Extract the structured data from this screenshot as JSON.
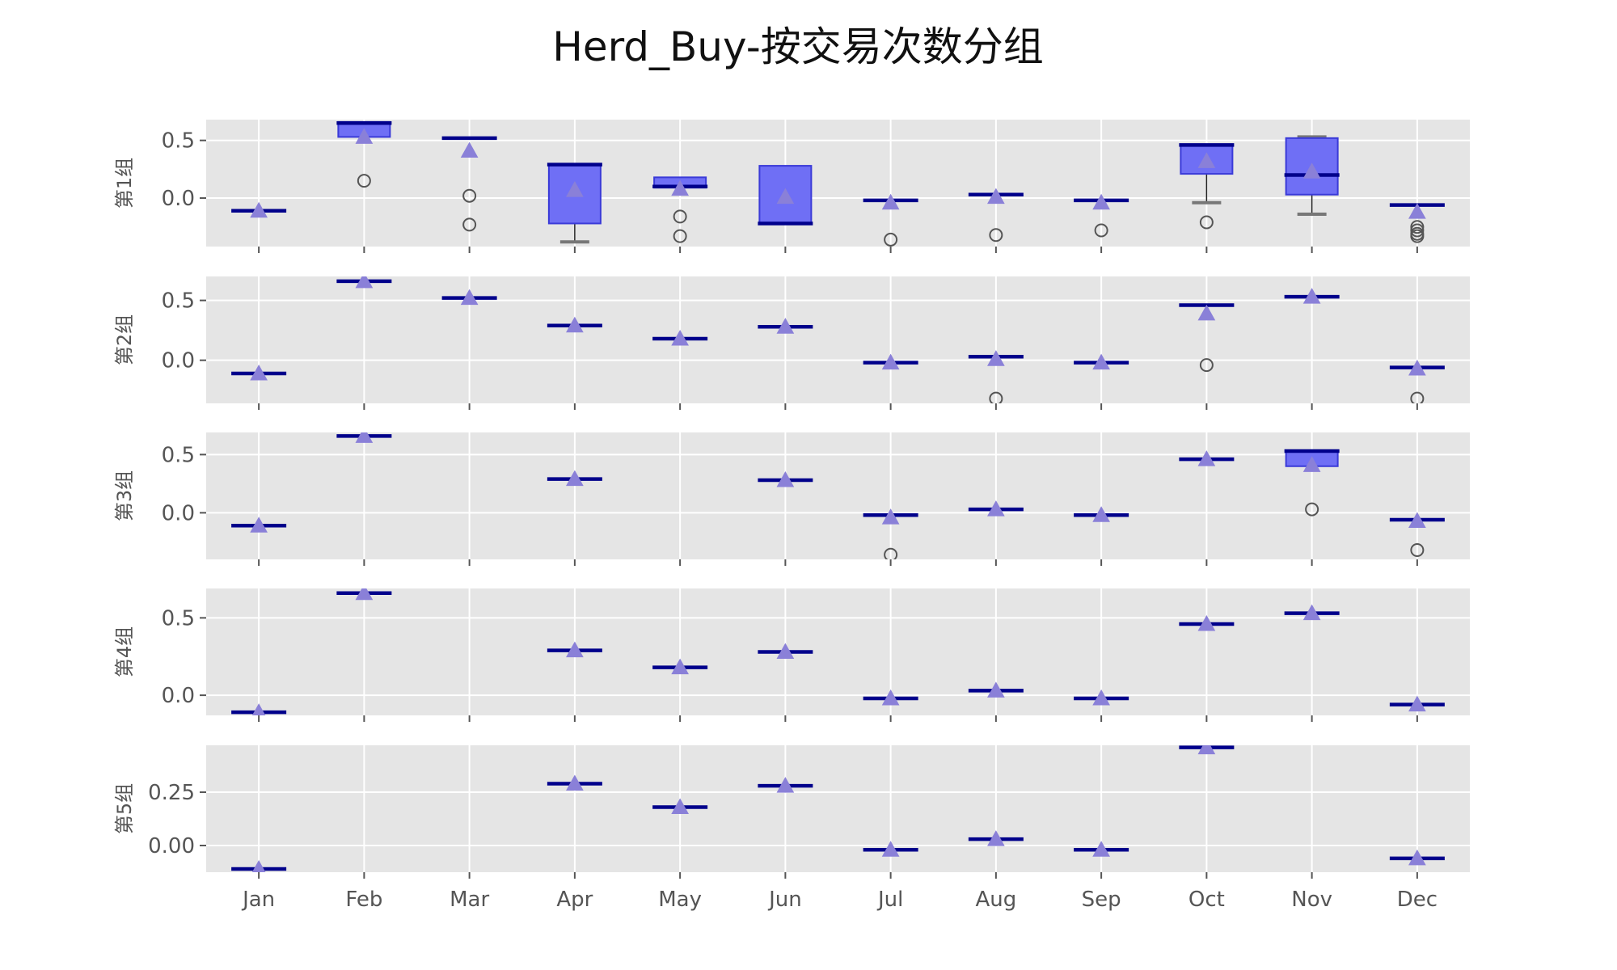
{
  "chart_data": {
    "type": "box",
    "title": "Herd_Buy-按交易次数分组",
    "categories": [
      "Jan",
      "Feb",
      "Mar",
      "Apr",
      "May",
      "Jun",
      "Jul",
      "Aug",
      "Sep",
      "Oct",
      "Nov",
      "Dec"
    ],
    "legend": "none",
    "grid": true,
    "colors": {
      "box_fill": "#6f6ff5",
      "box_edge": "#3a3ad8",
      "median": "#00008b",
      "mean_marker": "#8a80d8",
      "outlier": "#555555",
      "plot_bg": "#e5e5e5",
      "grid": "#ffffff"
    },
    "panels": [
      {
        "ylabel": "第1组",
        "ylim": [
          -0.42,
          0.68
        ],
        "yticks": [
          0.5,
          0.0
        ],
        "ytick_labels": [
          "0.5",
          "0.0"
        ],
        "boxes": [
          {
            "cat": "Jan",
            "q1": -0.11,
            "med": -0.11,
            "q3": -0.11,
            "wlo": -0.11,
            "whi": -0.11,
            "mean": -0.11,
            "outliers": []
          },
          {
            "cat": "Feb",
            "q1": 0.53,
            "med": 0.65,
            "q3": 0.66,
            "wlo": 0.53,
            "whi": 0.66,
            "mean": 0.53,
            "outliers": [
              0.15
            ]
          },
          {
            "cat": "Mar",
            "q1": 0.52,
            "med": 0.52,
            "q3": 0.52,
            "wlo": 0.52,
            "whi": 0.52,
            "mean": 0.41,
            "outliers": [
              0.02,
              -0.23
            ]
          },
          {
            "cat": "Apr",
            "q1": -0.22,
            "med": 0.29,
            "q3": 0.29,
            "wlo": -0.38,
            "whi": 0.29,
            "mean": 0.07,
            "outliers": []
          },
          {
            "cat": "May",
            "q1": 0.09,
            "med": 0.1,
            "q3": 0.18,
            "wlo": 0.09,
            "whi": 0.18,
            "mean": 0.08,
            "outliers": [
              -0.16,
              -0.33
            ]
          },
          {
            "cat": "Jun",
            "q1": -0.22,
            "med": -0.22,
            "q3": 0.28,
            "wlo": -0.22,
            "whi": 0.28,
            "mean": 0.01,
            "outliers": []
          },
          {
            "cat": "Jul",
            "q1": -0.02,
            "med": -0.02,
            "q3": -0.02,
            "wlo": -0.02,
            "whi": -0.02,
            "mean": -0.04,
            "outliers": [
              -0.36
            ]
          },
          {
            "cat": "Aug",
            "q1": 0.03,
            "med": 0.03,
            "q3": 0.03,
            "wlo": 0.03,
            "whi": 0.03,
            "mean": 0.01,
            "outliers": [
              -0.32
            ]
          },
          {
            "cat": "Sep",
            "q1": -0.02,
            "med": -0.02,
            "q3": -0.02,
            "wlo": -0.02,
            "whi": -0.02,
            "mean": -0.04,
            "outliers": [
              -0.28
            ]
          },
          {
            "cat": "Oct",
            "q1": 0.21,
            "med": 0.46,
            "q3": 0.46,
            "wlo": -0.04,
            "whi": 0.46,
            "mean": 0.32,
            "outliers": [
              -0.21
            ]
          },
          {
            "cat": "Nov",
            "q1": 0.03,
            "med": 0.2,
            "q3": 0.52,
            "wlo": -0.14,
            "whi": 0.53,
            "mean": 0.23,
            "outliers": []
          },
          {
            "cat": "Dec",
            "q1": -0.06,
            "med": -0.06,
            "q3": -0.06,
            "wlo": -0.06,
            "whi": -0.06,
            "mean": -0.12,
            "outliers": [
              -0.25,
              -0.28,
              -0.31,
              -0.33
            ]
          }
        ]
      },
      {
        "ylabel": "第2组",
        "ylim": [
          -0.36,
          0.7
        ],
        "yticks": [
          0.5,
          0.0
        ],
        "ytick_labels": [
          "0.5",
          "0.0"
        ],
        "boxes": [
          {
            "cat": "Jan",
            "q1": -0.11,
            "med": -0.11,
            "q3": -0.11,
            "wlo": -0.11,
            "whi": -0.11,
            "mean": -0.11,
            "outliers": []
          },
          {
            "cat": "Feb",
            "q1": 0.66,
            "med": 0.66,
            "q3": 0.66,
            "wlo": 0.66,
            "whi": 0.66,
            "mean": 0.66,
            "outliers": []
          },
          {
            "cat": "Mar",
            "q1": 0.52,
            "med": 0.52,
            "q3": 0.52,
            "wlo": 0.52,
            "whi": 0.52,
            "mean": 0.52,
            "outliers": []
          },
          {
            "cat": "Apr",
            "q1": 0.29,
            "med": 0.29,
            "q3": 0.29,
            "wlo": 0.29,
            "whi": 0.29,
            "mean": 0.29,
            "outliers": []
          },
          {
            "cat": "May",
            "q1": 0.18,
            "med": 0.18,
            "q3": 0.18,
            "wlo": 0.18,
            "whi": 0.18,
            "mean": 0.18,
            "outliers": []
          },
          {
            "cat": "Jun",
            "q1": 0.28,
            "med": 0.28,
            "q3": 0.28,
            "wlo": 0.28,
            "whi": 0.28,
            "mean": 0.28,
            "outliers": []
          },
          {
            "cat": "Jul",
            "q1": -0.02,
            "med": -0.02,
            "q3": -0.02,
            "wlo": -0.02,
            "whi": -0.02,
            "mean": -0.02,
            "outliers": []
          },
          {
            "cat": "Aug",
            "q1": 0.03,
            "med": 0.03,
            "q3": 0.03,
            "wlo": 0.03,
            "whi": 0.03,
            "mean": 0.01,
            "outliers": [
              -0.32
            ]
          },
          {
            "cat": "Sep",
            "q1": -0.02,
            "med": -0.02,
            "q3": -0.02,
            "wlo": -0.02,
            "whi": -0.02,
            "mean": -0.02,
            "outliers": []
          },
          {
            "cat": "Oct",
            "q1": 0.46,
            "med": 0.46,
            "q3": 0.46,
            "wlo": 0.46,
            "whi": 0.46,
            "mean": 0.39,
            "outliers": [
              -0.04
            ]
          },
          {
            "cat": "Nov",
            "q1": 0.53,
            "med": 0.53,
            "q3": 0.53,
            "wlo": 0.53,
            "whi": 0.53,
            "mean": 0.53,
            "outliers": []
          },
          {
            "cat": "Dec",
            "q1": -0.06,
            "med": -0.06,
            "q3": -0.06,
            "wlo": -0.06,
            "whi": -0.06,
            "mean": -0.07,
            "outliers": [
              -0.32
            ]
          }
        ]
      },
      {
        "ylabel": "第3组",
        "ylim": [
          -0.4,
          0.69
        ],
        "yticks": [
          0.5,
          0.0
        ],
        "ytick_labels": [
          "0.5",
          "0.0"
        ],
        "boxes": [
          {
            "cat": "Jan",
            "q1": -0.11,
            "med": -0.11,
            "q3": -0.11,
            "wlo": -0.11,
            "whi": -0.11,
            "mean": -0.11,
            "outliers": []
          },
          {
            "cat": "Feb",
            "q1": 0.66,
            "med": 0.66,
            "q3": 0.66,
            "wlo": 0.66,
            "whi": 0.66,
            "mean": 0.66,
            "outliers": []
          },
          {
            "cat": "Apr",
            "q1": 0.29,
            "med": 0.29,
            "q3": 0.29,
            "wlo": 0.29,
            "whi": 0.29,
            "mean": 0.29,
            "outliers": []
          },
          {
            "cat": "Jun",
            "q1": 0.28,
            "med": 0.28,
            "q3": 0.28,
            "wlo": 0.28,
            "whi": 0.28,
            "mean": 0.28,
            "outliers": []
          },
          {
            "cat": "Jul",
            "q1": -0.02,
            "med": -0.02,
            "q3": -0.02,
            "wlo": -0.02,
            "whi": -0.02,
            "mean": -0.04,
            "outliers": [
              -0.36
            ]
          },
          {
            "cat": "Aug",
            "q1": 0.03,
            "med": 0.03,
            "q3": 0.03,
            "wlo": 0.03,
            "whi": 0.03,
            "mean": 0.03,
            "outliers": []
          },
          {
            "cat": "Sep",
            "q1": -0.02,
            "med": -0.02,
            "q3": -0.02,
            "wlo": -0.02,
            "whi": -0.02,
            "mean": -0.02,
            "outliers": []
          },
          {
            "cat": "Oct",
            "q1": 0.46,
            "med": 0.46,
            "q3": 0.46,
            "wlo": 0.46,
            "whi": 0.46,
            "mean": 0.46,
            "outliers": []
          },
          {
            "cat": "Nov",
            "q1": 0.4,
            "med": 0.53,
            "q3": 0.53,
            "wlo": 0.4,
            "whi": 0.53,
            "mean": 0.41,
            "outliers": [
              0.03
            ]
          },
          {
            "cat": "Dec",
            "q1": -0.06,
            "med": -0.06,
            "q3": -0.06,
            "wlo": -0.06,
            "whi": -0.06,
            "mean": -0.07,
            "outliers": [
              -0.32
            ]
          }
        ]
      },
      {
        "ylabel": "第4组",
        "ylim": [
          -0.13,
          0.69
        ],
        "yticks": [
          0.5,
          0.0
        ],
        "ytick_labels": [
          "0.5",
          "0.0"
        ],
        "boxes": [
          {
            "cat": "Jan",
            "q1": -0.11,
            "med": -0.11,
            "q3": -0.11,
            "wlo": -0.11,
            "whi": -0.11,
            "mean": -0.11,
            "outliers": []
          },
          {
            "cat": "Feb",
            "q1": 0.66,
            "med": 0.66,
            "q3": 0.66,
            "wlo": 0.66,
            "whi": 0.66,
            "mean": 0.66,
            "outliers": []
          },
          {
            "cat": "Apr",
            "q1": 0.29,
            "med": 0.29,
            "q3": 0.29,
            "wlo": 0.29,
            "whi": 0.29,
            "mean": 0.29,
            "outliers": []
          },
          {
            "cat": "May",
            "q1": 0.18,
            "med": 0.18,
            "q3": 0.18,
            "wlo": 0.18,
            "whi": 0.18,
            "mean": 0.18,
            "outliers": []
          },
          {
            "cat": "Jun",
            "q1": 0.28,
            "med": 0.28,
            "q3": 0.28,
            "wlo": 0.28,
            "whi": 0.28,
            "mean": 0.28,
            "outliers": []
          },
          {
            "cat": "Jul",
            "q1": -0.02,
            "med": -0.02,
            "q3": -0.02,
            "wlo": -0.02,
            "whi": -0.02,
            "mean": -0.02,
            "outliers": []
          },
          {
            "cat": "Aug",
            "q1": 0.03,
            "med": 0.03,
            "q3": 0.03,
            "wlo": 0.03,
            "whi": 0.03,
            "mean": 0.03,
            "outliers": []
          },
          {
            "cat": "Sep",
            "q1": -0.02,
            "med": -0.02,
            "q3": -0.02,
            "wlo": -0.02,
            "whi": -0.02,
            "mean": -0.02,
            "outliers": []
          },
          {
            "cat": "Oct",
            "q1": 0.46,
            "med": 0.46,
            "q3": 0.46,
            "wlo": 0.46,
            "whi": 0.46,
            "mean": 0.46,
            "outliers": []
          },
          {
            "cat": "Nov",
            "q1": 0.53,
            "med": 0.53,
            "q3": 0.53,
            "wlo": 0.53,
            "whi": 0.53,
            "mean": 0.53,
            "outliers": []
          },
          {
            "cat": "Dec",
            "q1": -0.06,
            "med": -0.06,
            "q3": -0.06,
            "wlo": -0.06,
            "whi": -0.06,
            "mean": -0.06,
            "outliers": []
          }
        ]
      },
      {
        "ylabel": "第5组",
        "ylim": [
          -0.125,
          0.47
        ],
        "yticks": [
          0.25,
          0.0
        ],
        "ytick_labels": [
          "0.25",
          "0.00"
        ],
        "boxes": [
          {
            "cat": "Jan",
            "q1": -0.11,
            "med": -0.11,
            "q3": -0.11,
            "wlo": -0.11,
            "whi": -0.11,
            "mean": -0.11,
            "outliers": []
          },
          {
            "cat": "Apr",
            "q1": 0.29,
            "med": 0.29,
            "q3": 0.29,
            "wlo": 0.29,
            "whi": 0.29,
            "mean": 0.29,
            "outliers": []
          },
          {
            "cat": "May",
            "q1": 0.18,
            "med": 0.18,
            "q3": 0.18,
            "wlo": 0.18,
            "whi": 0.18,
            "mean": 0.18,
            "outliers": []
          },
          {
            "cat": "Jun",
            "q1": 0.28,
            "med": 0.28,
            "q3": 0.28,
            "wlo": 0.28,
            "whi": 0.28,
            "mean": 0.28,
            "outliers": []
          },
          {
            "cat": "Jul",
            "q1": -0.02,
            "med": -0.02,
            "q3": -0.02,
            "wlo": -0.02,
            "whi": -0.02,
            "mean": -0.02,
            "outliers": []
          },
          {
            "cat": "Aug",
            "q1": 0.03,
            "med": 0.03,
            "q3": 0.03,
            "wlo": 0.03,
            "whi": 0.03,
            "mean": 0.03,
            "outliers": []
          },
          {
            "cat": "Sep",
            "q1": -0.02,
            "med": -0.02,
            "q3": -0.02,
            "wlo": -0.02,
            "whi": -0.02,
            "mean": -0.02,
            "outliers": []
          },
          {
            "cat": "Oct",
            "q1": 0.46,
            "med": 0.46,
            "q3": 0.46,
            "wlo": 0.46,
            "whi": 0.46,
            "mean": 0.46,
            "outliers": []
          },
          {
            "cat": "Dec",
            "q1": -0.06,
            "med": -0.06,
            "q3": -0.06,
            "wlo": -0.06,
            "whi": -0.06,
            "mean": -0.06,
            "outliers": []
          }
        ]
      }
    ]
  }
}
